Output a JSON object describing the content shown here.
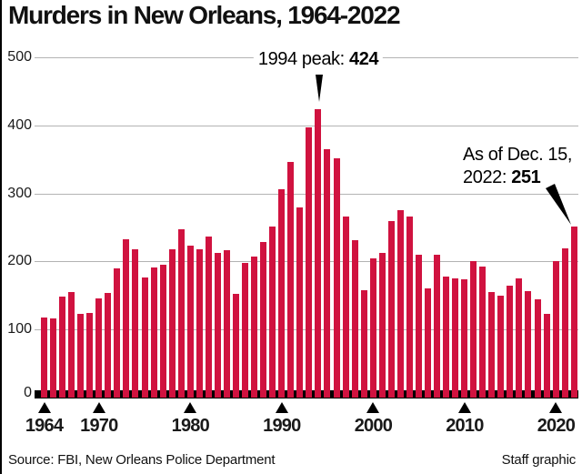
{
  "title": "Murders in New Orleans, 1964-2022",
  "source": "Source: FBI, New Orleans Police Department",
  "credit": "Staff graphic",
  "annotations": {
    "peak": {
      "prefix": "1994 peak: ",
      "value": "424"
    },
    "latest": {
      "line1": "As of Dec. 15,",
      "line2_prefix": "2022: ",
      "value": "251"
    }
  },
  "colors": {
    "bar": "#d0123f",
    "axis": "#000000",
    "gridline": "#b3b3b3",
    "text": "#000000"
  },
  "chart_data": {
    "type": "bar",
    "title": "Murders in New Orleans, 1964-2022",
    "x": [
      1964,
      1965,
      1966,
      1967,
      1968,
      1969,
      1970,
      1971,
      1972,
      1973,
      1974,
      1975,
      1976,
      1977,
      1978,
      1979,
      1980,
      1981,
      1982,
      1983,
      1984,
      1985,
      1986,
      1987,
      1988,
      1989,
      1990,
      1991,
      1992,
      1993,
      1994,
      1995,
      1996,
      1997,
      1998,
      1999,
      2000,
      2001,
      2002,
      2003,
      2004,
      2005,
      2006,
      2007,
      2008,
      2009,
      2010,
      2011,
      2012,
      2013,
      2014,
      2015,
      2016,
      2017,
      2018,
      2019,
      2020,
      2021,
      2022
    ],
    "values": [
      118,
      117,
      149,
      155,
      123,
      124,
      146,
      154,
      190,
      233,
      218,
      177,
      191,
      195,
      218,
      247,
      223,
      218,
      237,
      212,
      216,
      153,
      198,
      207,
      229,
      251,
      306,
      346,
      279,
      397,
      424,
      365,
      352,
      266,
      231,
      158,
      204,
      213,
      260,
      275,
      266,
      210,
      161,
      210,
      178,
      175,
      174,
      200,
      193,
      155,
      150,
      164,
      175,
      156,
      145,
      123,
      200,
      219,
      251
    ],
    "xlabel": "",
    "ylabel": "",
    "ylim": [
      0,
      500
    ],
    "yticks": [
      0,
      100,
      200,
      300,
      400,
      500
    ],
    "xticks": [
      1964,
      1970,
      1980,
      1990,
      2000,
      2010,
      2020
    ],
    "grid": true,
    "legend": "none",
    "annotated_points": [
      {
        "x": 1994,
        "y": 424,
        "label": "1994 peak: 424"
      },
      {
        "x": 2022,
        "y": 251,
        "label": "As of Dec. 15, 2022: 251"
      }
    ]
  }
}
